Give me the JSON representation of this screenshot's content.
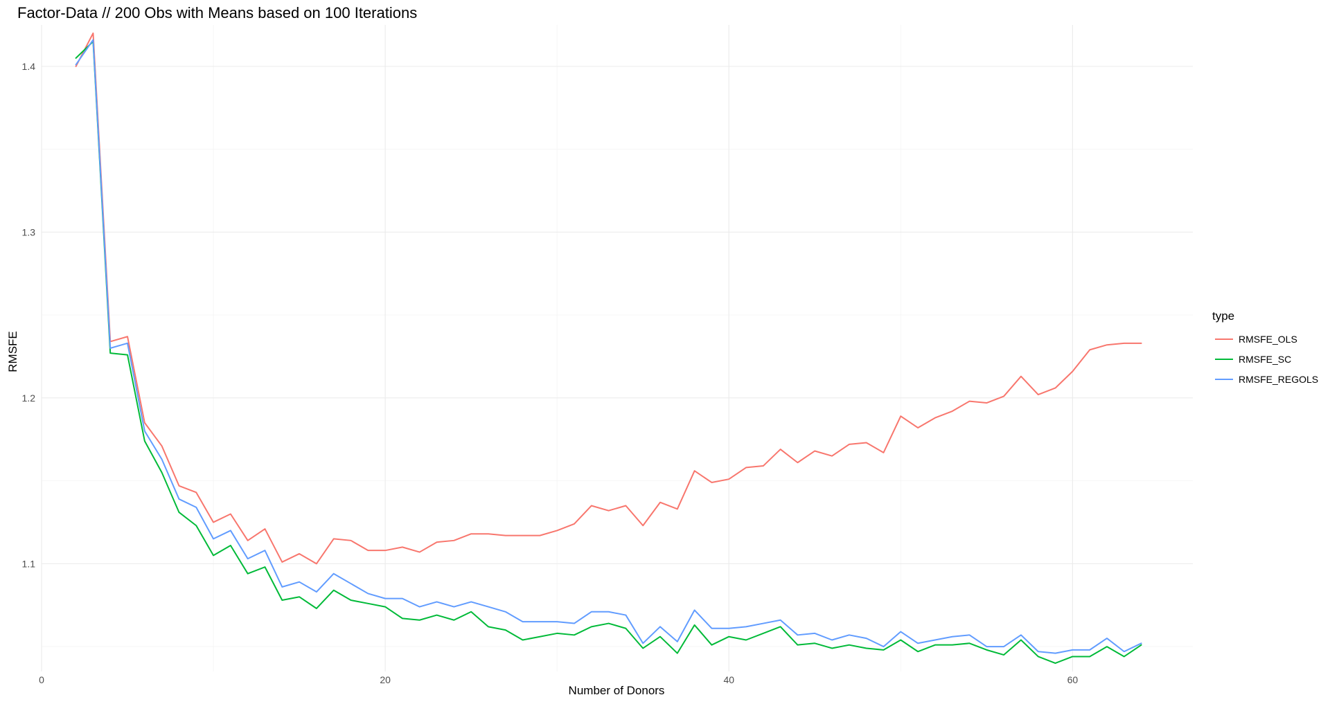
{
  "chart_data": {
    "type": "line",
    "title": "Factor-Data // 200 Obs with Means based on 100 Iterations",
    "xlabel": "Number of Donors",
    "ylabel": "RMSFE",
    "xlim": [
      0,
      67
    ],
    "ylim": [
      1.035,
      1.425
    ],
    "x_ticks": [
      0,
      20,
      40,
      60
    ],
    "x_tick_labels": [
      "0",
      "20",
      "40",
      "60"
    ],
    "y_ticks": [
      1.1,
      1.2,
      1.3,
      1.4
    ],
    "y_tick_labels": [
      "1.1",
      "1.2",
      "1.3",
      "1.4"
    ],
    "grid": true,
    "legend": {
      "title": "type",
      "position": "right"
    },
    "x": [
      2,
      3,
      4,
      5,
      6,
      7,
      8,
      9,
      10,
      11,
      12,
      13,
      14,
      15,
      16,
      17,
      18,
      19,
      20,
      21,
      22,
      23,
      24,
      25,
      26,
      27,
      28,
      29,
      30,
      31,
      32,
      33,
      34,
      35,
      36,
      37,
      38,
      39,
      40,
      41,
      42,
      43,
      44,
      45,
      46,
      47,
      48,
      49,
      50,
      51,
      52,
      53,
      54,
      55,
      56,
      57,
      58,
      59,
      60,
      61,
      62,
      63,
      64
    ],
    "series": [
      {
        "name": "RMSFE_OLS",
        "color": "#F8766D",
        "values": [
          1.4,
          1.42,
          1.234,
          1.237,
          1.185,
          1.171,
          1.147,
          1.143,
          1.125,
          1.13,
          1.114,
          1.121,
          1.101,
          1.106,
          1.1,
          1.115,
          1.114,
          1.108,
          1.108,
          1.11,
          1.107,
          1.113,
          1.114,
          1.118,
          1.118,
          1.117,
          1.117,
          1.117,
          1.12,
          1.124,
          1.135,
          1.132,
          1.135,
          1.123,
          1.137,
          1.133,
          1.156,
          1.149,
          1.151,
          1.158,
          1.159,
          1.169,
          1.161,
          1.168,
          1.165,
          1.172,
          1.173,
          1.167,
          1.189,
          1.182,
          1.188,
          1.192,
          1.198,
          1.197,
          1.201,
          1.213,
          1.202,
          1.206,
          1.216,
          1.229,
          1.232,
          1.233,
          1.233
        ]
      },
      {
        "name": "RMSFE_SC",
        "color": "#00BA38",
        "values": [
          1.405,
          1.415,
          1.227,
          1.226,
          1.174,
          1.155,
          1.131,
          1.123,
          1.105,
          1.111,
          1.094,
          1.098,
          1.078,
          1.08,
          1.073,
          1.084,
          1.078,
          1.076,
          1.074,
          1.067,
          1.066,
          1.069,
          1.066,
          1.071,
          1.062,
          1.06,
          1.054,
          1.056,
          1.058,
          1.057,
          1.062,
          1.064,
          1.061,
          1.049,
          1.056,
          1.046,
          1.063,
          1.051,
          1.056,
          1.054,
          1.058,
          1.062,
          1.051,
          1.052,
          1.049,
          1.051,
          1.049,
          1.048,
          1.054,
          1.047,
          1.051,
          1.051,
          1.052,
          1.048,
          1.045,
          1.054,
          1.044,
          1.04,
          1.044,
          1.044,
          1.05,
          1.044,
          1.051
        ]
      },
      {
        "name": "RMSFE_REGOLS",
        "color": "#619CFF",
        "values": [
          1.401,
          1.416,
          1.23,
          1.233,
          1.18,
          1.163,
          1.139,
          1.134,
          1.115,
          1.12,
          1.103,
          1.108,
          1.086,
          1.089,
          1.083,
          1.094,
          1.088,
          1.082,
          1.079,
          1.079,
          1.074,
          1.077,
          1.074,
          1.077,
          1.074,
          1.071,
          1.065,
          1.065,
          1.065,
          1.064,
          1.071,
          1.071,
          1.069,
          1.052,
          1.062,
          1.053,
          1.072,
          1.061,
          1.061,
          1.062,
          1.064,
          1.066,
          1.057,
          1.058,
          1.054,
          1.057,
          1.055,
          1.05,
          1.059,
          1.052,
          1.054,
          1.056,
          1.057,
          1.05,
          1.05,
          1.057,
          1.047,
          1.046,
          1.048,
          1.048,
          1.055,
          1.047,
          1.052
        ]
      }
    ]
  }
}
